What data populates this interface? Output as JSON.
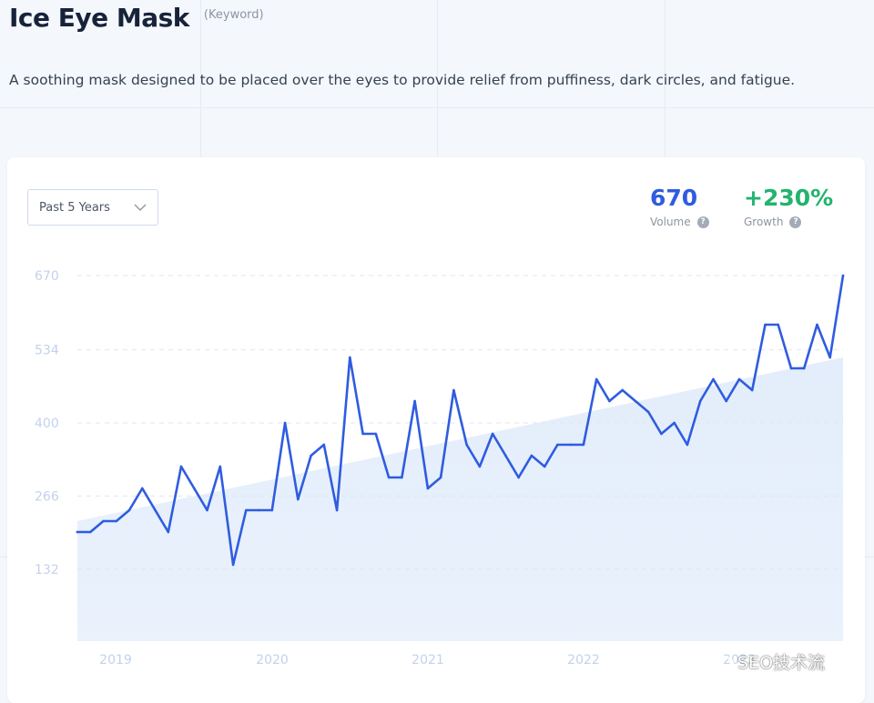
{
  "header": {
    "title": "Ice Eye Mask",
    "keyword_tag": "(Keyword)",
    "description": "A soothing mask designed to be placed over the eyes to provide relief from puffiness, dark circles, and fatigue."
  },
  "controls": {
    "range_label": "Past 5 Years",
    "chevron_icon": "chevron-down-icon"
  },
  "metrics": {
    "volume_value": "670",
    "volume_label": "Volume",
    "growth_value": "+230%",
    "growth_label": "Growth",
    "help_glyph": "?"
  },
  "colors": {
    "line": "#2f5ce0",
    "volume": "#2f5ce0",
    "growth": "#22b46e",
    "axis_text": "#c3d2ec",
    "grid": "#dfe6f2",
    "trend_fill": "#e3edfb"
  },
  "chart_data": {
    "type": "line",
    "title": "",
    "xlabel": "",
    "ylabel": "",
    "y_ticks": [
      132,
      266,
      400,
      534,
      670
    ],
    "ylim": [
      0,
      670
    ],
    "x_ticks": [
      "2019",
      "2020",
      "2021",
      "2022",
      "2023"
    ],
    "grid": "horizontal dashed",
    "series": [
      {
        "values": [
          200,
          200,
          220,
          220,
          240,
          280,
          240,
          200,
          320,
          280,
          240,
          320,
          140,
          240,
          240,
          240,
          400,
          260,
          340,
          360,
          240,
          520,
          380,
          380,
          300,
          300,
          440,
          280,
          300,
          460,
          360,
          320,
          380,
          340,
          300,
          340,
          320,
          360,
          360,
          360,
          480,
          440,
          460,
          440,
          420,
          380,
          400,
          360,
          440,
          480,
          440,
          480,
          460,
          580,
          580,
          500,
          500,
          580,
          520,
          670
        ]
      }
    ],
    "trend": {
      "start": 220,
      "end": 520
    }
  },
  "watermark": {
    "text": "SEO技术流",
    "icon": "wechat-icon"
  }
}
